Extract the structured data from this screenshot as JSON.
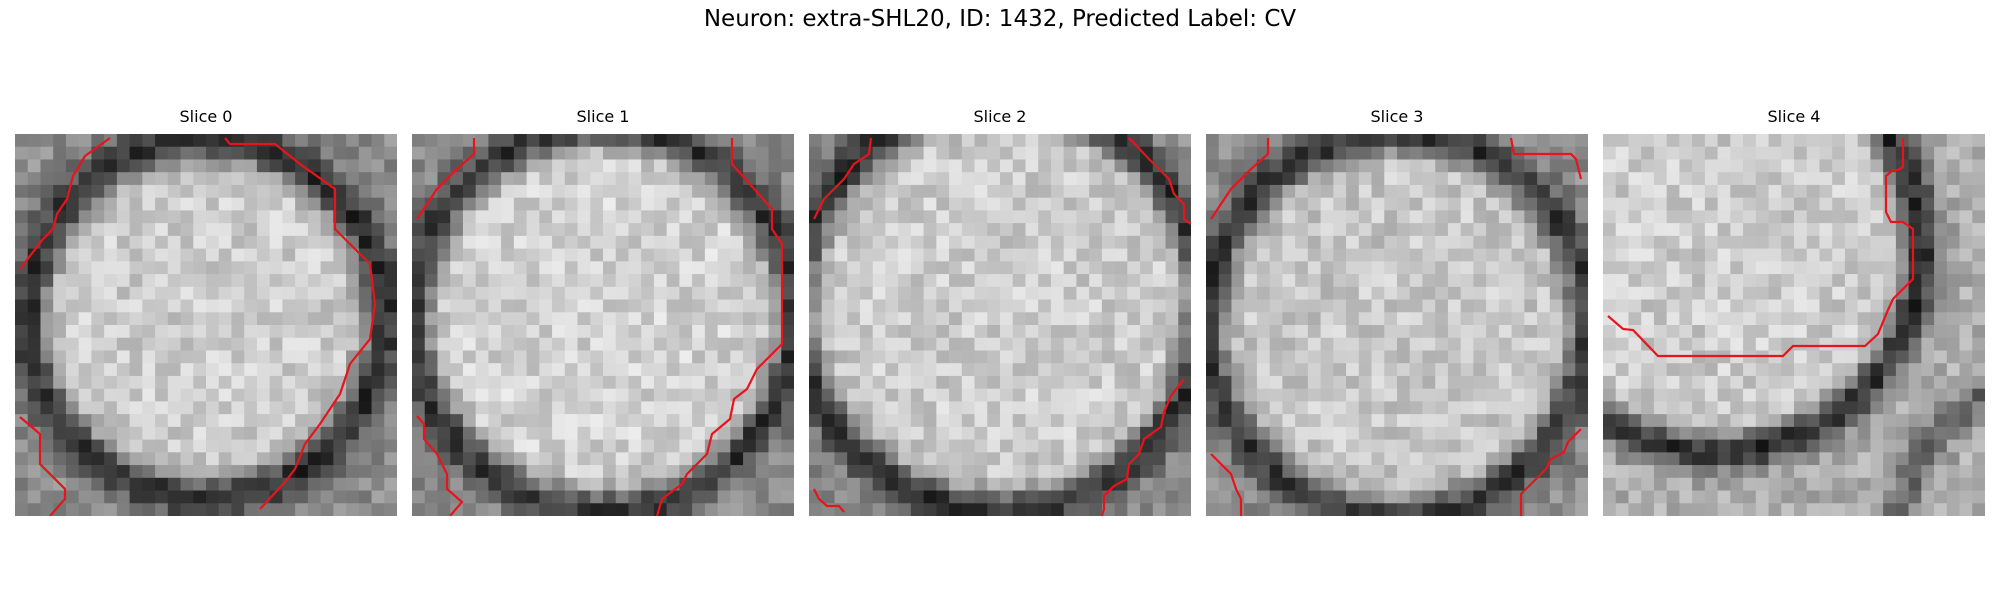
{
  "figure": {
    "title": "Neuron: extra-SHL20, ID: 1432, Predicted Label: CV",
    "contour_color": "#e8141b",
    "panels": [
      {
        "label": "Slice 0"
      },
      {
        "label": "Slice 1"
      },
      {
        "label": "Slice 2"
      },
      {
        "label": "Slice 3"
      },
      {
        "label": "Slice 4"
      }
    ]
  }
}
